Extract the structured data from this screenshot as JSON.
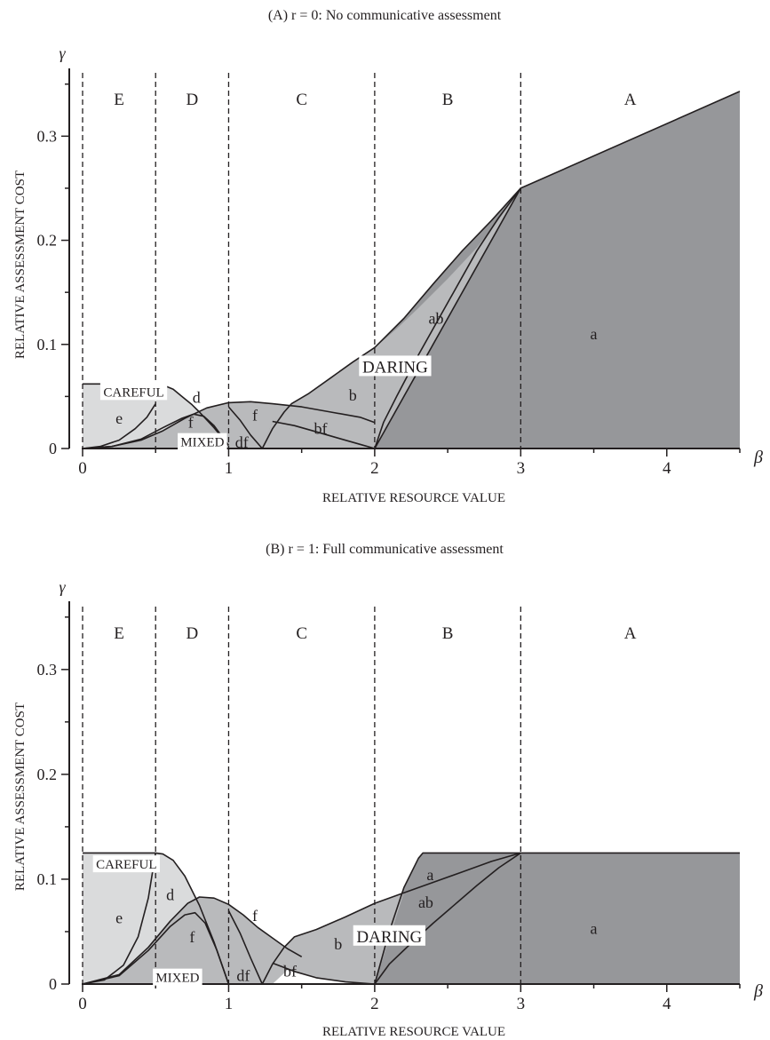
{
  "chart_data": [
    {
      "type": "area",
      "title": "(A)  r = 0: No communicative assessment",
      "xlabel": "RELATIVE RESOURCE VALUE",
      "ylabel": "RELATIVE ASSESSMENT COST",
      "x_symbol": "β",
      "y_symbol": "γ",
      "xlim": [
        0,
        4.5
      ],
      "ylim": [
        0,
        0.36
      ],
      "xticks": [
        0,
        1,
        2,
        3,
        4
      ],
      "xtick_labels": [
        "0",
        "1",
        "2",
        "3",
        "4"
      ],
      "yticks": [
        0,
        0.1,
        0.2,
        0.3
      ],
      "ytick_labels": [
        "0",
        "0.1",
        "0.2",
        "0.3"
      ],
      "boundaries": [
        0,
        0.5,
        1,
        2,
        3
      ],
      "region_labels": [
        {
          "text": "E",
          "x": 0.25
        },
        {
          "text": "D",
          "x": 0.75
        },
        {
          "text": "C",
          "x": 1.5
        },
        {
          "text": "B",
          "x": 2.5
        },
        {
          "text": "A",
          "x": 3.75
        }
      ],
      "strategy_labels": [
        {
          "text": "CAREFUL",
          "x": 0.35,
          "y": 0.05,
          "boxed": true
        },
        {
          "text": "MIXED",
          "x": 0.82,
          "y": 0.002,
          "boxed": true
        },
        {
          "text": "DARING",
          "x": 2.14,
          "y": 0.073,
          "boxed": true
        }
      ],
      "area_labels": [
        {
          "text": "e",
          "x": 0.25,
          "y": 0.024
        },
        {
          "text": "d",
          "x": 0.78,
          "y": 0.044
        },
        {
          "text": "f",
          "x": 0.74,
          "y": 0.02
        },
        {
          "text": "f",
          "x": 1.18,
          "y": 0.027
        },
        {
          "text": "df",
          "x": 1.09,
          "y": 0.001
        },
        {
          "text": "bf",
          "x": 1.63,
          "y": 0.014
        },
        {
          "text": "b",
          "x": 1.85,
          "y": 0.046
        },
        {
          "text": "ab",
          "x": 2.42,
          "y": 0.12
        },
        {
          "text": "a",
          "x": 3.5,
          "y": 0.105
        }
      ],
      "regions": [
        {
          "name": "careful",
          "shade": "light",
          "x": [
            0,
            0.5,
            0.5,
            0
          ],
          "y": [
            0.062,
            0.062,
            0,
            0
          ]
        },
        {
          "name": "careful-d",
          "shade": "light",
          "x": [
            0.5,
            0.55,
            0.62,
            0.68,
            0.75,
            0.8,
            0.9,
            1.0,
            0.5
          ],
          "y": [
            0.062,
            0.061,
            0.057,
            0.05,
            0.042,
            0.035,
            0.02,
            0.003,
            0
          ]
        },
        {
          "name": "mixed",
          "shade": "medium",
          "x": [
            0,
            0.2,
            0.4,
            0.55,
            0.7,
            0.85,
            1.0,
            1.15,
            1.3,
            1.5,
            1.7,
            1.9,
            2.0,
            2.0,
            0
          ],
          "y": [
            0,
            0.002,
            0.008,
            0.017,
            0.029,
            0.039,
            0.044,
            0.045,
            0.043,
            0.04,
            0.035,
            0.03,
            0.025,
            0,
            0
          ]
        },
        {
          "name": "daring",
          "shade": "dark",
          "x": [
            1.23,
            1.3,
            1.38,
            1.43,
            1.55,
            1.7,
            1.85,
            2.0,
            2.2,
            2.4,
            2.6,
            2.8,
            3.0,
            4.5,
            4.5,
            2.0,
            1.9,
            1.75,
            1.6,
            1.45,
            1.3
          ],
          "y": [
            0.0,
            0.019,
            0.035,
            0.043,
            0.053,
            0.068,
            0.083,
            0.097,
            0.125,
            0.158,
            0.19,
            0.219,
            0.25,
            0.343,
            0,
            0,
            0.004,
            0.01,
            0.016,
            0.022,
            0.026
          ]
        },
        {
          "name": "daring-b",
          "shade": "medium",
          "x": [
            1.23,
            1.3,
            1.38,
            1.43,
            1.55,
            1.7,
            1.85,
            2.0,
            2.06,
            2.15,
            2.3,
            2.5,
            2.7,
            2.85,
            3.0,
            2.0,
            1.9,
            1.75,
            1.6,
            1.45,
            1.3
          ],
          "y": [
            0.0,
            0.019,
            0.035,
            0.043,
            0.053,
            0.068,
            0.083,
            0.097,
            0.104,
            0.115,
            0.135,
            0.163,
            0.193,
            0.22,
            0.25,
            0,
            0.004,
            0.01,
            0.016,
            0.022,
            0.026
          ]
        }
      ],
      "curves": [
        {
          "name": "careful-top",
          "x": [
            0,
            0.5
          ],
          "y": [
            0.062,
            0.062
          ]
        },
        {
          "name": "careful-boundary",
          "x": [
            0.5,
            0.55,
            0.62,
            0.68,
            0.75,
            0.8,
            0.9,
            1.0
          ],
          "y": [
            0.062,
            0.061,
            0.057,
            0.05,
            0.042,
            0.035,
            0.02,
            0.003
          ]
        },
        {
          "name": "e-boundary",
          "x": [
            0,
            0.12,
            0.25,
            0.36,
            0.44,
            0.5
          ],
          "y": [
            0,
            0.002,
            0.008,
            0.019,
            0.03,
            0.043
          ]
        },
        {
          "name": "mixed-top",
          "x": [
            0,
            0.2,
            0.4,
            0.55,
            0.7,
            0.85,
            1.0,
            1.15,
            1.3,
            1.5,
            1.7,
            1.9,
            2.0
          ],
          "y": [
            0,
            0.002,
            0.008,
            0.017,
            0.029,
            0.039,
            0.044,
            0.045,
            0.043,
            0.04,
            0.035,
            0.03,
            0.025
          ]
        },
        {
          "name": "f-inner",
          "x": [
            0,
            0.2,
            0.4,
            0.55,
            0.68,
            0.76,
            0.83,
            0.9,
            1.0
          ],
          "y": [
            0,
            0.002,
            0.009,
            0.02,
            0.029,
            0.033,
            0.031,
            0.022,
            0.003
          ]
        },
        {
          "name": "df-right",
          "x": [
            1.0,
            1.08,
            1.15,
            1.23
          ],
          "y": [
            0.04,
            0.027,
            0.013,
            0.0
          ]
        },
        {
          "name": "daring-top",
          "x": [
            1.23,
            1.3,
            1.38,
            1.43,
            1.55,
            1.7,
            1.85,
            2.0,
            2.2,
            2.4,
            2.6,
            2.8,
            3.0,
            4.5
          ],
          "y": [
            0.0,
            0.019,
            0.035,
            0.043,
            0.053,
            0.068,
            0.083,
            0.097,
            0.125,
            0.158,
            0.19,
            0.219,
            0.25,
            0.343
          ]
        },
        {
          "name": "bf-lower",
          "x": [
            1.3,
            1.45,
            1.6,
            1.75,
            1.9,
            2.0
          ],
          "y": [
            0.026,
            0.022,
            0.016,
            0.01,
            0.004,
            0.0
          ]
        },
        {
          "name": "ab-left",
          "x": [
            2.0,
            2.06,
            2.15,
            2.3,
            2.5,
            2.7,
            2.85,
            3.0
          ],
          "y": [
            0.0,
            0.025,
            0.05,
            0.09,
            0.14,
            0.19,
            0.222,
            0.25
          ]
        },
        {
          "name": "ab-right",
          "x": [
            2.0,
            3.0
          ],
          "y": [
            0.0,
            0.25
          ]
        }
      ]
    },
    {
      "type": "area",
      "title": "(B)  r = 1: Full communicative assessment",
      "xlabel": "RELATIVE RESOURCE VALUE",
      "ylabel": "RELATIVE ASSESSMENT COST",
      "x_symbol": "β",
      "y_symbol": "γ",
      "xlim": [
        0,
        4.5
      ],
      "ylim": [
        0,
        0.36
      ],
      "xticks": [
        0,
        1,
        2,
        3,
        4
      ],
      "xtick_labels": [
        "0",
        "1",
        "2",
        "3",
        "4"
      ],
      "yticks": [
        0,
        0.1,
        0.2,
        0.3
      ],
      "ytick_labels": [
        "0",
        "0.1",
        "0.2",
        "0.3"
      ],
      "boundaries": [
        0,
        0.5,
        1,
        2,
        3
      ],
      "region_labels": [
        {
          "text": "E",
          "x": 0.25
        },
        {
          "text": "D",
          "x": 0.75
        },
        {
          "text": "C",
          "x": 1.5
        },
        {
          "text": "B",
          "x": 2.5
        },
        {
          "text": "A",
          "x": 3.75
        }
      ],
      "strategy_labels": [
        {
          "text": "CAREFUL",
          "x": 0.3,
          "y": 0.11,
          "boxed": true
        },
        {
          "text": "MIXED",
          "x": 0.65,
          "y": 0.002,
          "boxed": true
        },
        {
          "text": "DARING",
          "x": 2.1,
          "y": 0.04,
          "boxed": true
        }
      ],
      "area_labels": [
        {
          "text": "e",
          "x": 0.25,
          "y": 0.058
        },
        {
          "text": "d",
          "x": 0.6,
          "y": 0.08
        },
        {
          "text": "f",
          "x": 0.75,
          "y": 0.04
        },
        {
          "text": "f",
          "x": 1.18,
          "y": 0.06
        },
        {
          "text": "df",
          "x": 1.1,
          "y": 0.003
        },
        {
          "text": "bf",
          "x": 1.42,
          "y": 0.007
        },
        {
          "text": "b",
          "x": 1.75,
          "y": 0.033
        },
        {
          "text": "a",
          "x": 2.38,
          "y": 0.099
        },
        {
          "text": "ab",
          "x": 2.35,
          "y": 0.073
        },
        {
          "text": "a",
          "x": 3.5,
          "y": 0.048
        }
      ],
      "regions": [
        {
          "name": "careful",
          "shade": "light",
          "x": [
            0,
            0.5,
            0.5,
            0
          ],
          "y": [
            0.125,
            0.125,
            0,
            0
          ]
        },
        {
          "name": "careful-d",
          "shade": "light",
          "x": [
            0.5,
            0.55,
            0.62,
            0.7,
            0.8,
            0.9,
            1.0,
            0.5
          ],
          "y": [
            0.125,
            0.124,
            0.118,
            0.103,
            0.075,
            0.04,
            0.0,
            0
          ]
        },
        {
          "name": "mixed",
          "shade": "medium",
          "x": [
            0,
            0.25,
            0.45,
            0.6,
            0.72,
            0.8,
            0.9,
            1.0,
            1.1,
            1.2,
            1.3,
            1.4,
            1.5,
            1.3,
            1.23,
            1.15,
            1.08,
            1.0,
            0
          ],
          "y": [
            0,
            0.009,
            0.035,
            0.06,
            0.077,
            0.083,
            0.082,
            0.076,
            0.066,
            0.054,
            0.044,
            0.034,
            0.026,
            0.0,
            0.0,
            0.0,
            0.0,
            0.0,
            0
          ]
        },
        {
          "name": "daring",
          "shade": "dark",
          "x": [
            2.0,
            2.1,
            2.2,
            2.3,
            2.33,
            4.5,
            4.5,
            2.0
          ],
          "y": [
            0.0,
            0.05,
            0.092,
            0.12,
            0.125,
            0.125,
            0,
            0
          ]
        },
        {
          "name": "daring-b",
          "shade": "medium",
          "x": [
            1.23,
            1.3,
            1.38,
            1.45,
            1.6,
            1.8,
            2.0,
            2.2,
            2.4,
            2.6,
            2.8,
            3.0,
            2.8,
            2.6,
            2.4,
            2.2,
            2.0,
            1.8,
            1.6,
            1.45,
            1.3
          ],
          "y": [
            0.0,
            0.019,
            0.035,
            0.045,
            0.052,
            0.064,
            0.077,
            0.087,
            0.097,
            0.107,
            0.117,
            0.125,
            0.117,
            0.107,
            0.097,
            0.087,
            0.0,
            0.002,
            0.006,
            0.012,
            0.02
          ]
        },
        {
          "name": "ab-wedge",
          "shade": "dark",
          "x": [
            2.0,
            2.1,
            2.25,
            2.4,
            2.55,
            2.7,
            2.85,
            3.0,
            2.8,
            2.6,
            2.4,
            2.2
          ],
          "y": [
            0.0,
            0.019,
            0.039,
            0.058,
            0.076,
            0.094,
            0.111,
            0.125,
            0.117,
            0.107,
            0.097,
            0.087
          ]
        }
      ],
      "curves": [
        {
          "name": "careful-top",
          "x": [
            0,
            0.5
          ],
          "y": [
            0.125,
            0.125
          ]
        },
        {
          "name": "careful-boundary",
          "x": [
            0.5,
            0.55,
            0.62,
            0.7,
            0.8,
            0.9,
            1.0
          ],
          "y": [
            0.125,
            0.124,
            0.118,
            0.103,
            0.075,
            0.04,
            0.0
          ]
        },
        {
          "name": "e-boundary",
          "x": [
            0,
            0.15,
            0.28,
            0.38,
            0.45,
            0.5
          ],
          "y": [
            0,
            0.004,
            0.018,
            0.045,
            0.082,
            0.125
          ]
        },
        {
          "name": "mixed-top",
          "x": [
            0,
            0.25,
            0.45,
            0.6,
            0.72,
            0.8,
            0.9,
            1.0,
            1.1,
            1.2,
            1.3,
            1.4,
            1.5
          ],
          "y": [
            0,
            0.009,
            0.035,
            0.06,
            0.077,
            0.083,
            0.082,
            0.076,
            0.066,
            0.054,
            0.044,
            0.034,
            0.026
          ]
        },
        {
          "name": "f-inner",
          "x": [
            0,
            0.25,
            0.45,
            0.6,
            0.7,
            0.77,
            0.84,
            0.92,
            1.0
          ],
          "y": [
            0,
            0.008,
            0.032,
            0.055,
            0.066,
            0.068,
            0.058,
            0.032,
            0.0
          ]
        },
        {
          "name": "df-right",
          "x": [
            1.0,
            1.08,
            1.15,
            1.23
          ],
          "y": [
            0.07,
            0.048,
            0.025,
            0.0
          ]
        },
        {
          "name": "daring-top",
          "x": [
            1.23,
            1.3,
            1.38,
            1.45,
            1.6,
            1.8,
            2.0,
            2.2,
            2.4,
            2.6,
            2.8,
            3.0
          ],
          "y": [
            0.0,
            0.019,
            0.035,
            0.045,
            0.052,
            0.064,
            0.077,
            0.087,
            0.097,
            0.107,
            0.117,
            0.125
          ]
        },
        {
          "name": "bf-lower",
          "x": [
            1.3,
            1.45,
            1.6,
            1.8,
            2.0
          ],
          "y": [
            0.02,
            0.012,
            0.006,
            0.002,
            0.0
          ]
        },
        {
          "name": "a-top-left",
          "x": [
            2.0,
            2.1,
            2.2,
            2.3,
            2.33,
            4.5
          ],
          "y": [
            0.0,
            0.05,
            0.092,
            0.12,
            0.125,
            0.125
          ]
        },
        {
          "name": "ab-lower",
          "x": [
            2.0,
            2.1,
            2.25,
            2.4,
            2.55,
            2.7,
            2.85,
            3.0
          ],
          "y": [
            0.0,
            0.019,
            0.039,
            0.058,
            0.076,
            0.094,
            0.111,
            0.125
          ]
        }
      ]
    }
  ],
  "colors": {
    "light": "#dadbdc",
    "medium": "#b9babc",
    "dark": "#96979a",
    "ink": "#231f20",
    "label_box": "#ffffff"
  }
}
